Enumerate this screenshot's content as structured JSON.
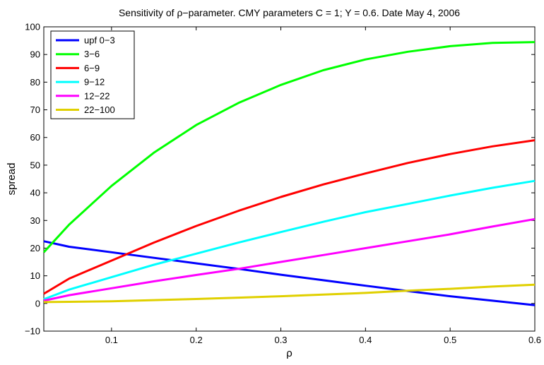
{
  "chart_data": {
    "type": "line",
    "title": "Sensitivity of ρ−parameter. CMY parameters C = 1; Y = 0.6. Date May 4, 2006",
    "xlabel": "ρ",
    "ylabel": "spread",
    "xlim": [
      0.02,
      0.6
    ],
    "ylim": [
      -10,
      100
    ],
    "xticks": [
      0.1,
      0.2,
      0.3,
      0.4,
      0.5,
      0.6
    ],
    "xtick_labels": [
      "0.1",
      "0.2",
      "0.3",
      "0.4",
      "0.5",
      "0.6"
    ],
    "yticks": [
      -10,
      0,
      10,
      20,
      30,
      40,
      50,
      60,
      70,
      80,
      90,
      100
    ],
    "ytick_labels": [
      "−10",
      "0",
      "10",
      "20",
      "30",
      "40",
      "50",
      "60",
      "70",
      "80",
      "90",
      "100"
    ],
    "grid": false,
    "legend_position": "top-left",
    "x": [
      0.02,
      0.05,
      0.1,
      0.15,
      0.2,
      0.25,
      0.3,
      0.35,
      0.4,
      0.45,
      0.5,
      0.55,
      0.6
    ],
    "series": [
      {
        "name": "upf 0−3",
        "color": "#0000ff",
        "values": [
          22.5,
          20.5,
          18.5,
          16.5,
          14.5,
          12.5,
          10.4,
          8.4,
          6.4,
          4.5,
          2.6,
          1.0,
          -0.6
        ]
      },
      {
        "name": "3−6",
        "color": "#00ff00",
        "values": [
          18.5,
          28.5,
          42.5,
          54.5,
          64.5,
          72.5,
          79.0,
          84.3,
          88.2,
          91.0,
          93.0,
          94.2,
          94.5
        ]
      },
      {
        "name": "6−9",
        "color": "#ff0000",
        "values": [
          3.5,
          9.0,
          15.5,
          22.0,
          28.0,
          33.5,
          38.5,
          43.0,
          47.0,
          50.8,
          54.0,
          56.8,
          59.0
        ]
      },
      {
        "name": "9−12",
        "color": "#00ffff",
        "values": [
          1.5,
          5.0,
          9.5,
          14.0,
          18.0,
          22.0,
          25.8,
          29.5,
          33.0,
          36.0,
          39.0,
          41.8,
          44.3
        ]
      },
      {
        "name": "12−22",
        "color": "#ff00ff",
        "values": [
          1.0,
          3.0,
          5.5,
          8.0,
          10.3,
          12.5,
          15.0,
          17.5,
          20.0,
          22.5,
          25.0,
          27.8,
          30.5
        ]
      },
      {
        "name": "22−100",
        "color": "#e0d000",
        "values": [
          0.5,
          0.6,
          0.8,
          1.2,
          1.6,
          2.1,
          2.6,
          3.2,
          3.8,
          4.6,
          5.3,
          6.1,
          6.8
        ]
      }
    ]
  }
}
